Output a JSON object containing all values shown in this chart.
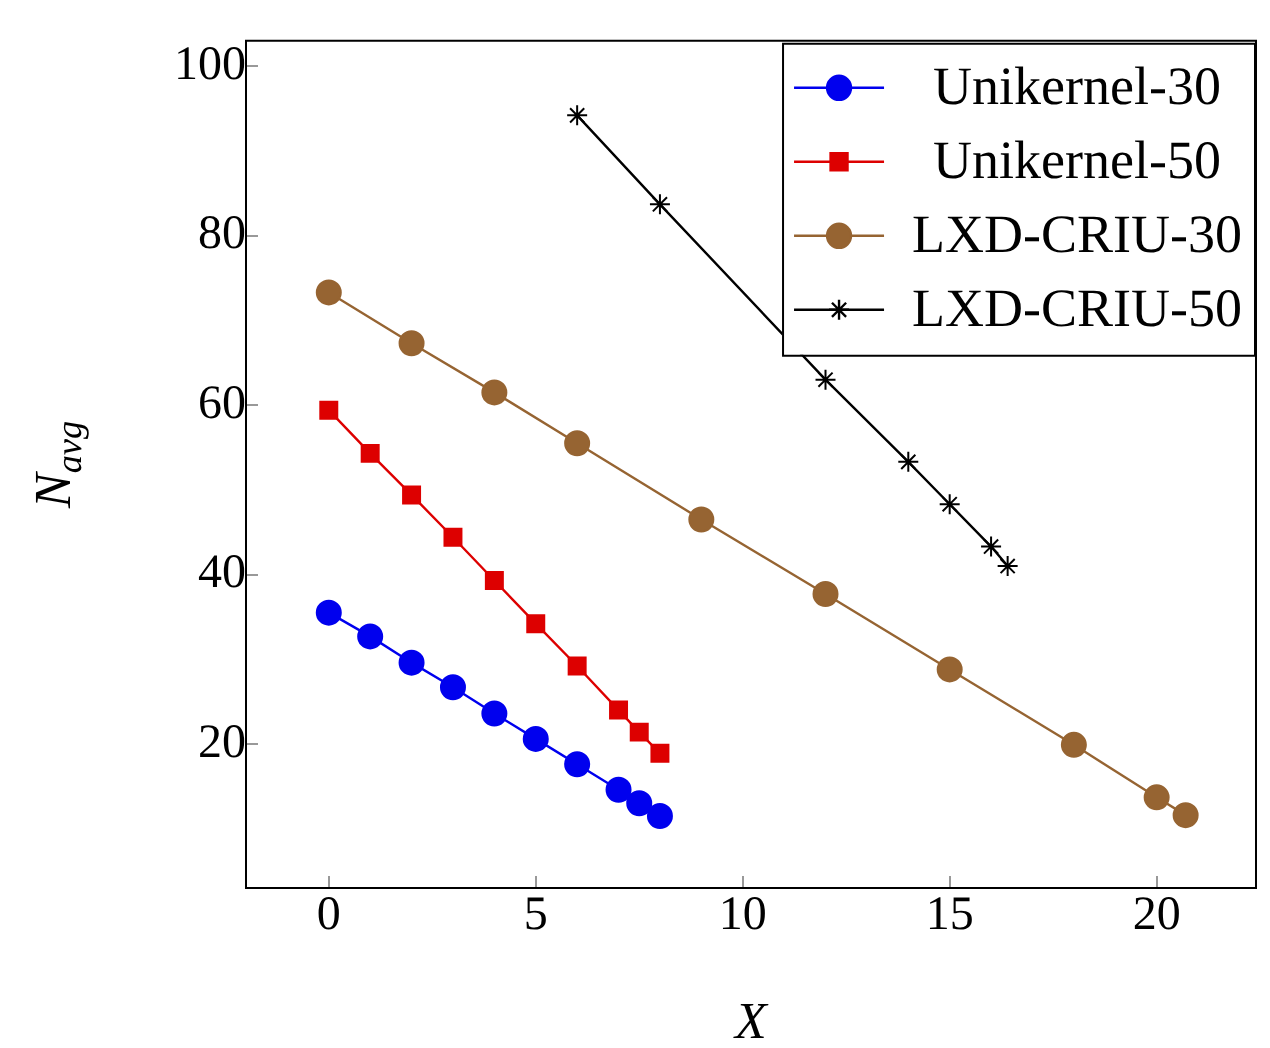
{
  "chart_data": {
    "type": "line",
    "xlabel": "X",
    "ylabel": "N$_{avg}$",
    "xlim": [
      -2,
      22.4
    ],
    "xticks": [
      0,
      5,
      10,
      15,
      20
    ],
    "ylim": [
      3,
      103
    ],
    "yticks": [
      20,
      40,
      60,
      80,
      100
    ],
    "grid": false,
    "legend": "top right",
    "series": [
      {
        "name": "Unikernel-30",
        "color": "#0000ee",
        "marker": "circle",
        "x": [
          0,
          1,
          2,
          3,
          4,
          5,
          6,
          7,
          7.5,
          8
        ],
        "values": [
          35.5,
          32.7,
          29.6,
          26.7,
          23.6,
          20.6,
          17.6,
          14.6,
          13.0,
          11.5
        ]
      },
      {
        "name": "Unikernel-50",
        "color": "#dd0000",
        "marker": "square",
        "x": [
          0,
          1,
          2,
          3,
          4,
          5,
          6,
          7,
          7.5,
          8
        ],
        "values": [
          59.4,
          54.3,
          49.4,
          44.4,
          39.3,
          34.2,
          29.2,
          24.0,
          21.4,
          18.9
        ]
      },
      {
        "name": "LXD-CRIU-30",
        "color": "#966432",
        "marker": "circle",
        "x": [
          0,
          2,
          4,
          6,
          9,
          12,
          15,
          18,
          20,
          20.7
        ],
        "values": [
          73.3,
          67.3,
          61.5,
          55.5,
          46.5,
          37.7,
          28.8,
          19.9,
          13.7,
          11.6
        ]
      },
      {
        "name": "LXD-CRIU-50",
        "color": "#000000",
        "marker": "cross",
        "x": [
          6,
          8,
          12,
          14,
          15,
          16,
          16.4
        ],
        "values": [
          94.2,
          83.7,
          63.0,
          53.3,
          48.3,
          43.3,
          41.0
        ]
      }
    ]
  }
}
